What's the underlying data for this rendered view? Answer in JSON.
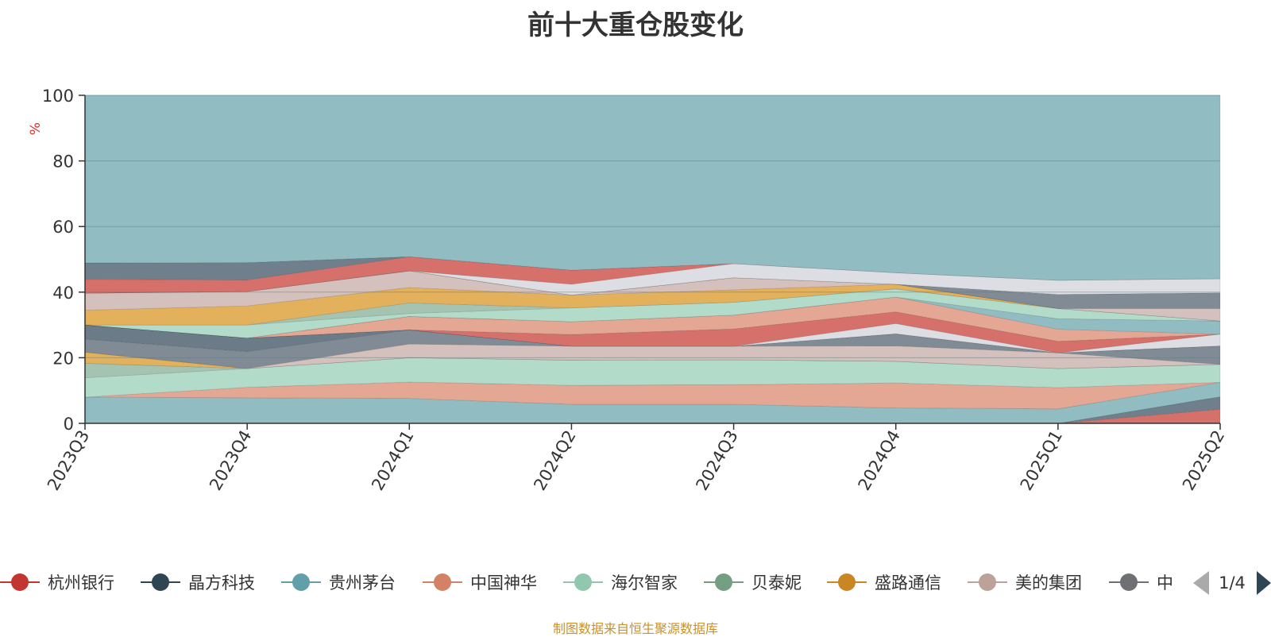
{
  "chart_data": {
    "type": "area",
    "title": "前十大重仓股变化",
    "ylabel": "%",
    "ylim": [
      0,
      100
    ],
    "y_ticks": [
      0,
      20,
      40,
      60,
      80,
      100
    ],
    "grid": true,
    "legend_placement": "bottom",
    "categories": [
      "2023Q3",
      "2023Q4",
      "2024Q1",
      "2024Q2",
      "2024Q3",
      "2024Q4",
      "2025Q1",
      "2025Q2"
    ],
    "layers": [
      {
        "color": "#d6706b",
        "upper": [
          0,
          0,
          0,
          0,
          0,
          0,
          0,
          4.3
        ]
      },
      {
        "color": "#6f7f8c",
        "upper": [
          0,
          0,
          0,
          0,
          0,
          0,
          0,
          8.1
        ]
      },
      {
        "color": "#91bcc2",
        "upper": [
          8.0,
          7.8,
          7.6,
          5.8,
          5.8,
          4.7,
          4.4,
          12.5
        ]
      },
      {
        "color": "#e3a794",
        "upper": [
          8.0,
          11.0,
          12.6,
          11.6,
          11.8,
          12.3,
          10.9,
          12.5
        ]
      },
      {
        "color": "#b2dbca",
        "upper": [
          13.9,
          16.7,
          20.0,
          19.3,
          19.4,
          18.9,
          16.7,
          18.0
        ]
      },
      {
        "color": "#a4c4b1",
        "upper": [
          18.3,
          16.7,
          20.0,
          19.3,
          19.4,
          18.9,
          16.7,
          18.0
        ]
      },
      {
        "color": "#e3b05c",
        "upper": [
          21.7,
          16.7,
          20.0,
          19.3,
          19.4,
          18.9,
          16.7,
          18.0
        ]
      },
      {
        "color": "#d4c0bc",
        "upper": [
          21.7,
          16.7,
          24.2,
          23.5,
          23.5,
          23.6,
          21.5,
          18.0
        ]
      },
      {
        "color": "#808b95",
        "upper": [
          25.7,
          21.9,
          28.5,
          23.5,
          23.5,
          27.3,
          21.5,
          23.6
        ]
      },
      {
        "color": "#6b7b88",
        "upper": [
          30.0,
          26.0,
          28.5,
          23.5,
          23.5,
          27.3,
          21.5,
          23.6
        ]
      },
      {
        "color": "#dcdee3",
        "upper": [
          30.0,
          26.0,
          28.5,
          23.5,
          23.5,
          30.4,
          21.5,
          27.2
        ]
      },
      {
        "color": "#d6706b",
        "upper": [
          30.0,
          26.0,
          28.5,
          27.1,
          28.8,
          34.0,
          25.0,
          27.2
        ]
      },
      {
        "color": "#e3a794",
        "upper": [
          30.0,
          26.0,
          32.6,
          31.0,
          33.0,
          38.5,
          28.7,
          27.2
        ]
      },
      {
        "color": "#91bcc2",
        "upper": [
          30.0,
          26.0,
          32.6,
          31.0,
          33.0,
          38.5,
          31.9,
          31.2
        ]
      },
      {
        "color": "#b2dbca",
        "upper": [
          30.0,
          30.0,
          33.5,
          35.2,
          36.9,
          41.0,
          35.0,
          31.2
        ]
      },
      {
        "color": "#a4c4b1",
        "upper": [
          30.0,
          30.0,
          36.7,
          35.2,
          36.9,
          41.0,
          35.0,
          31.2
        ]
      },
      {
        "color": "#e3b05c",
        "upper": [
          34.5,
          35.8,
          41.4,
          39.1,
          40.7,
          42.4,
          35.0,
          31.2
        ]
      },
      {
        "color": "#d4c0bc",
        "upper": [
          39.7,
          40.2,
          46.5,
          39.1,
          44.4,
          42.4,
          35.0,
          35.0
        ]
      },
      {
        "color": "#9aa3ab",
        "upper": [
          39.7,
          40.2,
          46.5,
          39.1,
          44.4,
          42.4,
          35.0,
          35.0
        ]
      },
      {
        "color": "#808b95",
        "upper": [
          39.7,
          40.2,
          46.5,
          39.1,
          44.4,
          42.4,
          39.3,
          39.8
        ]
      },
      {
        "color": "#dcdee3",
        "upper": [
          39.7,
          40.2,
          46.5,
          42.4,
          48.7,
          45.9,
          43.6,
          44.1
        ]
      },
      {
        "color": "#d6706b",
        "upper": [
          43.9,
          43.7,
          50.8,
          46.7,
          48.7,
          45.9,
          43.6,
          44.1
        ]
      },
      {
        "color": "#6f7f8c",
        "upper": [
          48.9,
          49.0,
          50.8,
          46.7,
          48.7,
          45.9,
          43.6,
          44.1
        ]
      },
      {
        "color": "#91bcc2",
        "upper": [
          100,
          100,
          100,
          100,
          100,
          100,
          100,
          100
        ]
      }
    ],
    "legend": [
      {
        "name": "杭州银行",
        "color": "#c23531"
      },
      {
        "name": "晶方科技",
        "color": "#2f4554"
      },
      {
        "name": "贵州茅台",
        "color": "#61a0a8"
      },
      {
        "name": "中国神华",
        "color": "#d48265"
      },
      {
        "name": "海尔智家",
        "color": "#91c7ae"
      },
      {
        "name": "贝泰妮",
        "color": "#749f83"
      },
      {
        "name": "盛路通信",
        "color": "#ca8622"
      },
      {
        "name": "美的集团",
        "color": "#bda29a"
      },
      {
        "name": "中",
        "color": "#6e7074"
      }
    ],
    "legend_page": "1/4"
  },
  "footer": {
    "source": "制图数据来自恒生聚源数据库"
  }
}
